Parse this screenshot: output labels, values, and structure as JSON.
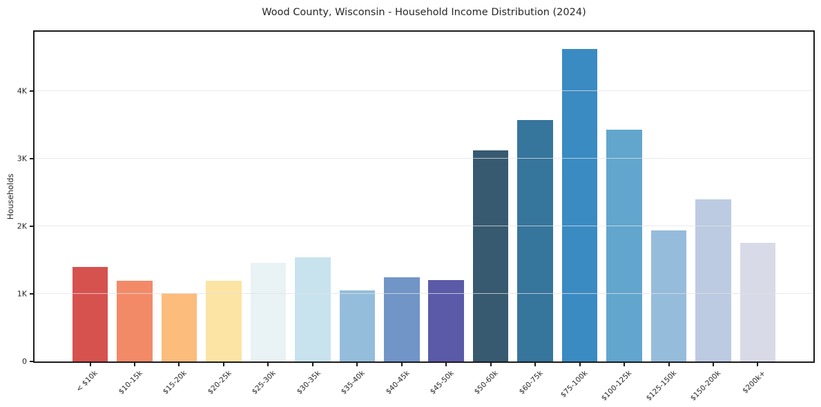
{
  "figure": {
    "background": "#ffffff",
    "text_color": "#262626",
    "axis_color": "#1a1a1a"
  },
  "chart_data": {
    "type": "bar",
    "title": "Wood County, Wisconsin - Household Income Distribution (2024)",
    "xlabel": "",
    "ylabel": "Households",
    "categories": [
      "< $10k",
      "$10-15k",
      "$15-20k",
      "$20-25k",
      "$25-30k",
      "$30-35k",
      "$35-40k",
      "$40-45k",
      "$45-50k",
      "$50-60k",
      "$60-75k",
      "$75-100k",
      "$100-125k",
      "$125-150k",
      "$150-200k",
      "$200k+"
    ],
    "values": [
      1400,
      1190,
      1015,
      1195,
      1465,
      1545,
      1055,
      1245,
      1205,
      3120,
      3575,
      4630,
      3430,
      1940,
      2395,
      1755
    ],
    "bar_colors": [
      "#d6524e",
      "#f28a68",
      "#fbbc7c",
      "#fce4a4",
      "#e9f2f4",
      "#c8e3ee",
      "#94bddc",
      "#7195c7",
      "#5b5aa8",
      "#375a70",
      "#36759c",
      "#3a8bc2",
      "#62a6ce",
      "#96bcdc",
      "#bccbe2",
      "#d9dae8"
    ],
    "ylim": [
      0,
      4880
    ],
    "yticks": [
      {
        "value": 0,
        "label": "0"
      },
      {
        "value": 1000,
        "label": "1K"
      },
      {
        "value": 2000,
        "label": "2K"
      },
      {
        "value": 3000,
        "label": "3K"
      },
      {
        "value": 4000,
        "label": "4K"
      }
    ],
    "grid": "horizontal",
    "grid_color": "#e3e3e3",
    "legend": "none",
    "bar_relative_width": 0.8
  }
}
